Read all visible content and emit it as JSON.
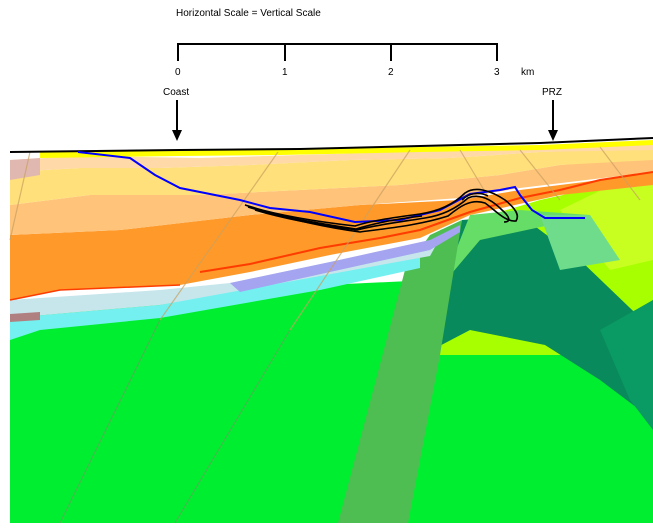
{
  "scale_title": "Horizontal Scale = Vertical Scale",
  "scale_bar": {
    "ticks": [
      "0",
      "1",
      "2",
      "3"
    ],
    "unit": "km"
  },
  "markers": {
    "coast": "Coast",
    "prz": "PRZ"
  },
  "colors": {
    "green": "#00ee30",
    "green_band": "#4fbe52",
    "lime": "#a8ff00",
    "dark_teal": "#088a5c",
    "light_teal": "#66dd66",
    "orange": "#ff9a2a",
    "light_orange": "#ffc37a",
    "pale_peach": "#ffd9a8",
    "pale_yellow": "#ffe07a",
    "yellow": "#ffff00",
    "red": "#ff3c00",
    "periwinkle": "#a4a4f0",
    "pale_blue": "#c6e6ec",
    "cyan": "#74f0f0",
    "blue_line": "#0000ff",
    "black_line": "#000000"
  }
}
